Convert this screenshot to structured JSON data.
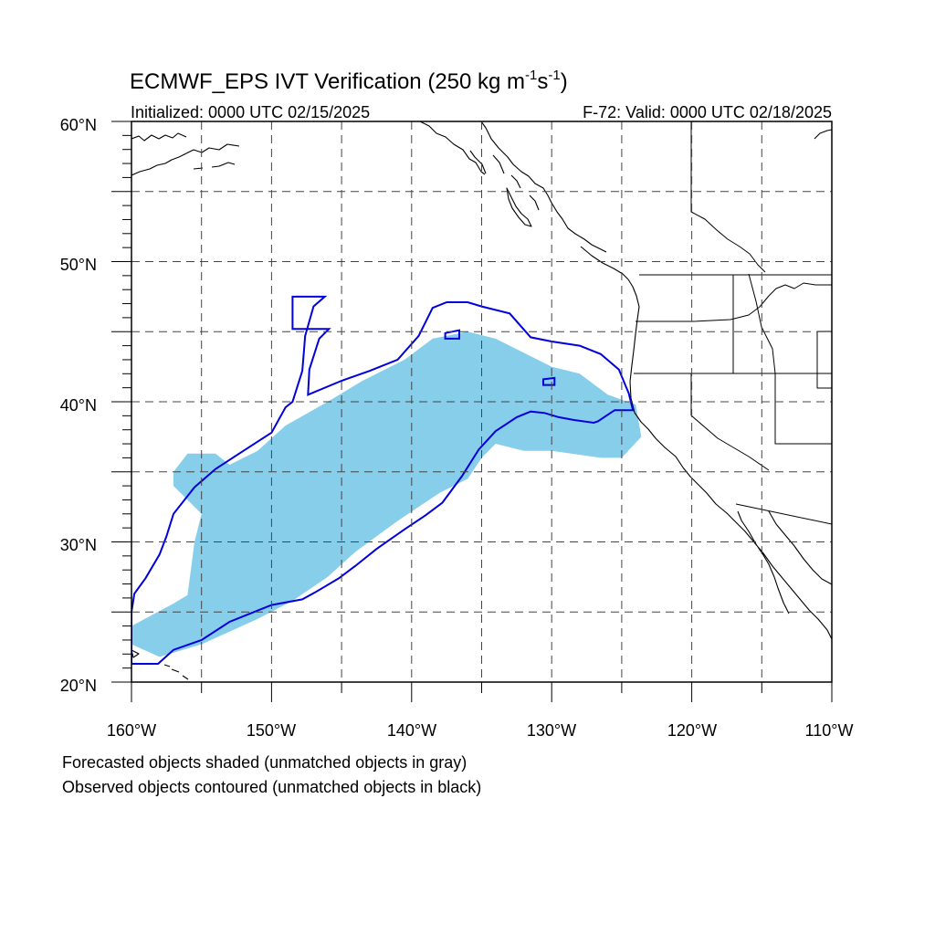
{
  "title": {
    "prefix": "ECMWF_EPS IVT Verification (250 kg m",
    "exp1": "-1",
    "mid": "s",
    "exp2": "-1",
    "suffix": ")"
  },
  "subtitle_left": "Initialized: 0000 UTC 02/15/2025",
  "subtitle_right": "F-72: Valid: 0000 UTC 02/18/2025",
  "lat_labels": [
    "60°N",
    "50°N",
    "40°N",
    "30°N",
    "20°N"
  ],
  "lon_labels": [
    "160°W",
    "150°W",
    "140°W",
    "130°W",
    "120°W",
    "110°W"
  ],
  "footer": [
    "Forecasted objects shaded (unmatched objects in gray)",
    "Observed objects contoured (unmatched objects in black)"
  ],
  "colors": {
    "forecast_fill": "#87CEEB",
    "observed_contour": "#0000DD",
    "coastline": "#000000",
    "grid": "#444444"
  },
  "map_extent": {
    "lon_min": -160,
    "lon_max": -110,
    "lat_min": 20,
    "lat_max": 60,
    "grid_spacing_deg": 5
  },
  "objects": {
    "forecast": {
      "name": "Forecasted object",
      "polygon_lonlat": [
        [
          -160,
          24
        ],
        [
          -157,
          25.6
        ],
        [
          -156,
          26.2
        ],
        [
          -155.5,
          30
        ],
        [
          -155,
          32
        ],
        [
          -157,
          34
        ],
        [
          -157,
          35
        ],
        [
          -156,
          36.3
        ],
        [
          -154,
          36.3
        ],
        [
          -153,
          35.5
        ],
        [
          -151,
          36.5
        ],
        [
          -149,
          38.3
        ],
        [
          -146,
          40
        ],
        [
          -143.5,
          41.5
        ],
        [
          -140.5,
          43
        ],
        [
          -138.5,
          44.5
        ],
        [
          -136,
          45
        ],
        [
          -134,
          44.5
        ],
        [
          -132,
          43.5
        ],
        [
          -130,
          42.5
        ],
        [
          -128,
          42
        ],
        [
          -126,
          40.5
        ],
        [
          -124,
          39.8
        ],
        [
          -123.6,
          37.5
        ],
        [
          -125,
          36
        ],
        [
          -126.5,
          36
        ],
        [
          -130,
          36.5
        ],
        [
          -132,
          36.5
        ],
        [
          -134,
          37
        ],
        [
          -135,
          36
        ],
        [
          -136,
          34.5
        ],
        [
          -138,
          33.5
        ],
        [
          -141,
          31.5
        ],
        [
          -144,
          29.3
        ],
        [
          -146,
          27.5
        ],
        [
          -148.5,
          25.8
        ],
        [
          -151,
          24.5
        ],
        [
          -155,
          22.7
        ],
        [
          -158,
          21.8
        ],
        [
          -160,
          22.7
        ]
      ]
    },
    "observed": {
      "name": "Observed object",
      "polygon_lonlat": [
        [
          -160,
          25
        ],
        [
          -159.8,
          26.3
        ],
        [
          -159,
          27.4
        ],
        [
          -158,
          29.1
        ],
        [
          -157.5,
          30.4
        ],
        [
          -157,
          32
        ],
        [
          -155.5,
          33.9
        ],
        [
          -154,
          35.2
        ],
        [
          -152,
          36.5
        ],
        [
          -150,
          37.8
        ],
        [
          -149,
          39.6
        ],
        [
          -148.5,
          40
        ],
        [
          -147.8,
          42.2
        ],
        [
          -147.6,
          44.7
        ],
        [
          -147,
          46.8
        ],
        [
          -146.2,
          47.5
        ],
        [
          -148.5,
          47.5
        ],
        [
          -148.5,
          45.2
        ],
        [
          -145.9,
          45.2
        ],
        [
          -146.6,
          44.5
        ],
        [
          -147.3,
          42.3
        ],
        [
          -147.4,
          40.5
        ],
        [
          -145,
          41.5
        ],
        [
          -143,
          42.2
        ],
        [
          -141,
          43
        ],
        [
          -140.2,
          43.9
        ],
        [
          -139.5,
          44.7
        ],
        [
          -138.8,
          46.1
        ],
        [
          -138.5,
          46.7
        ],
        [
          -137.5,
          47.1
        ],
        [
          -136,
          47.1
        ],
        [
          -135,
          46.8
        ],
        [
          -133,
          46.3
        ],
        [
          -131.5,
          44.6
        ],
        [
          -130,
          44.3
        ],
        [
          -128,
          44
        ],
        [
          -126.5,
          43.4
        ],
        [
          -125.2,
          42.3
        ],
        [
          -124.5,
          40.6
        ],
        [
          -124.2,
          39.4
        ],
        [
          -125.5,
          39.4
        ],
        [
          -126.7,
          38.6
        ],
        [
          -127,
          38.5
        ],
        [
          -128.4,
          38.7
        ],
        [
          -129.5,
          38.9
        ],
        [
          -130.5,
          39.2
        ],
        [
          -131.5,
          39.3
        ],
        [
          -132.5,
          38.9
        ],
        [
          -134,
          37.9
        ],
        [
          -135.2,
          36.6
        ],
        [
          -136.4,
          34.7
        ],
        [
          -137.8,
          32.8
        ],
        [
          -139,
          31.9
        ],
        [
          -140.5,
          30.9
        ],
        [
          -142.5,
          29.5
        ],
        [
          -144,
          28.3
        ],
        [
          -145.2,
          27.4
        ],
        [
          -146.9,
          26.4
        ],
        [
          -147.8,
          25.9
        ],
        [
          -150,
          25.5
        ],
        [
          -151,
          25.1
        ],
        [
          -153,
          24.3
        ],
        [
          -155,
          23
        ],
        [
          -157,
          22.3
        ],
        [
          -158.1,
          21.3
        ],
        [
          -160,
          21.3
        ]
      ],
      "small_contours_lonlat": [
        [
          [
            -137.6,
            44.5
          ],
          [
            -136.6,
            44.5
          ],
          [
            -136.6,
            45.1
          ],
          [
            -137.6,
            44.9
          ]
        ],
        [
          [
            -130.6,
            41.2
          ],
          [
            -129.8,
            41.2
          ],
          [
            -129.8,
            41.7
          ],
          [
            -130.6,
            41.6
          ]
        ]
      ]
    }
  }
}
